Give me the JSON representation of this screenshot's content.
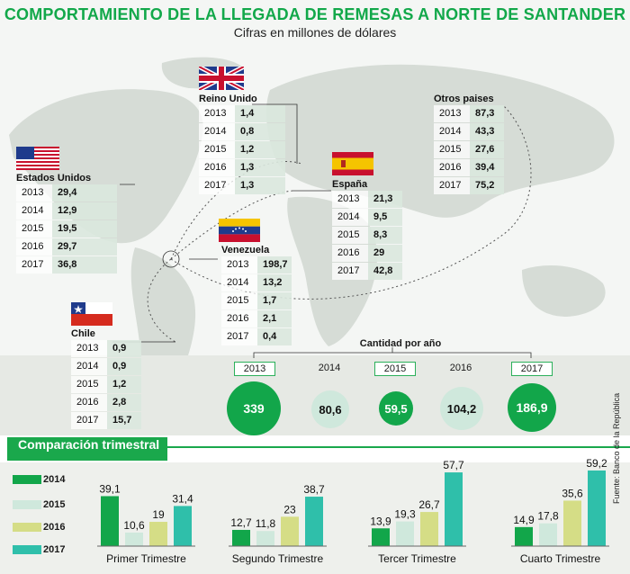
{
  "title": "COMPORTAMIENTO DE LA LLEGADA DE REMESAS A NORTE DE SANTANDER",
  "subtitle": "Cifras en millones de dólares",
  "source": "Fuente: Banco de la República",
  "colors": {
    "green_dark": "#12a64a",
    "mint": "#cfe8dc",
    "lime": "#d5dd86",
    "teal": "#2fbfaa",
    "title_green": "#12a84a"
  },
  "countries": [
    {
      "name": "Reino Unido",
      "flag": "uk-flag-icon",
      "rows": [
        {
          "year": "2013",
          "value": "1,4"
        },
        {
          "year": "2014",
          "value": "0,8"
        },
        {
          "year": "2015",
          "value": "1,2"
        },
        {
          "year": "2016",
          "value": "1,3"
        },
        {
          "year": "2017",
          "value": "1,3"
        }
      ]
    },
    {
      "name": "Estados Unidos",
      "flag": "usa-flag-icon",
      "rows": [
        {
          "year": "2013",
          "value": "29,4"
        },
        {
          "year": "2014",
          "value": "12,9"
        },
        {
          "year": "2015",
          "value": "19,5"
        },
        {
          "year": "2016",
          "value": "29,7"
        },
        {
          "year": "2017",
          "value": "36,8"
        }
      ]
    },
    {
      "name": "España",
      "flag": "spain-flag-icon",
      "rows": [
        {
          "year": "2013",
          "value": "21,3"
        },
        {
          "year": "2014",
          "value": "9,5"
        },
        {
          "year": "2015",
          "value": "8,3"
        },
        {
          "year": "2016",
          "value": "29"
        },
        {
          "year": "2017",
          "value": "42,8"
        }
      ]
    },
    {
      "name": "Otros paises",
      "flag": "",
      "rows": [
        {
          "year": "2013",
          "value": "87,3"
        },
        {
          "year": "2014",
          "value": "43,3"
        },
        {
          "year": "2015",
          "value": "27,6"
        },
        {
          "year": "2016",
          "value": "39,4"
        },
        {
          "year": "2017",
          "value": "75,2"
        }
      ]
    },
    {
      "name": "Venezuela",
      "flag": "venezuela-flag-icon",
      "rows": [
        {
          "year": "2013",
          "value": "198,7"
        },
        {
          "year": "2014",
          "value": "13,2"
        },
        {
          "year": "2015",
          "value": "1,7"
        },
        {
          "year": "2016",
          "value": "2,1"
        },
        {
          "year": "2017",
          "value": "0,4"
        }
      ]
    },
    {
      "name": "Chile",
      "flag": "chile-flag-icon",
      "rows": [
        {
          "year": "2013",
          "value": "0,9"
        },
        {
          "year": "2014",
          "value": "0,9"
        },
        {
          "year": "2015",
          "value": "1,2"
        },
        {
          "year": "2016",
          "value": "2,8"
        },
        {
          "year": "2017",
          "value": "15,7"
        }
      ]
    }
  ],
  "annual": {
    "title": "Cantidad por año",
    "items": [
      {
        "year": "2013",
        "value": "339",
        "label_boxed": true,
        "filled": true
      },
      {
        "year": "2014",
        "value": "80,6",
        "label_boxed": false,
        "filled": false
      },
      {
        "year": "2015",
        "value": "59,5",
        "label_boxed": true,
        "filled": true
      },
      {
        "year": "2016",
        "value": "104,2",
        "label_boxed": false,
        "filled": false
      },
      {
        "year": "2017",
        "value": "186,9",
        "label_boxed": true,
        "filled": true
      }
    ]
  },
  "quarterly_title": "Comparación trimestral",
  "chart_data": {
    "type": "bar",
    "categories": [
      "Primer Trimestre",
      "Segundo Trimestre",
      "Tercer Trimestre",
      "Cuarto Trimestre"
    ],
    "series": [
      {
        "name": "2014",
        "color": "#12a64a",
        "values": [
          39.1,
          12.7,
          13.9,
          14.9
        ],
        "labels": [
          "39,1",
          "12,7",
          "13,9",
          "14,9"
        ]
      },
      {
        "name": "2015",
        "color": "#cfe8dc",
        "values": [
          10.6,
          11.8,
          19.3,
          17.8
        ],
        "labels": [
          "10,6",
          "11,8",
          "19,3",
          "17,8"
        ]
      },
      {
        "name": "2016",
        "color": "#d5dd86",
        "values": [
          19,
          23,
          26.7,
          35.6
        ],
        "labels": [
          "19",
          "23",
          "26,7",
          "35,6"
        ]
      },
      {
        "name": "2017",
        "color": "#2fbfaa",
        "values": [
          31.4,
          38.7,
          57.7,
          59.2
        ],
        "labels": [
          "31,4",
          "38,7",
          "57,7",
          "59,2"
        ]
      }
    ],
    "legend_position": "left",
    "grid": false
  }
}
